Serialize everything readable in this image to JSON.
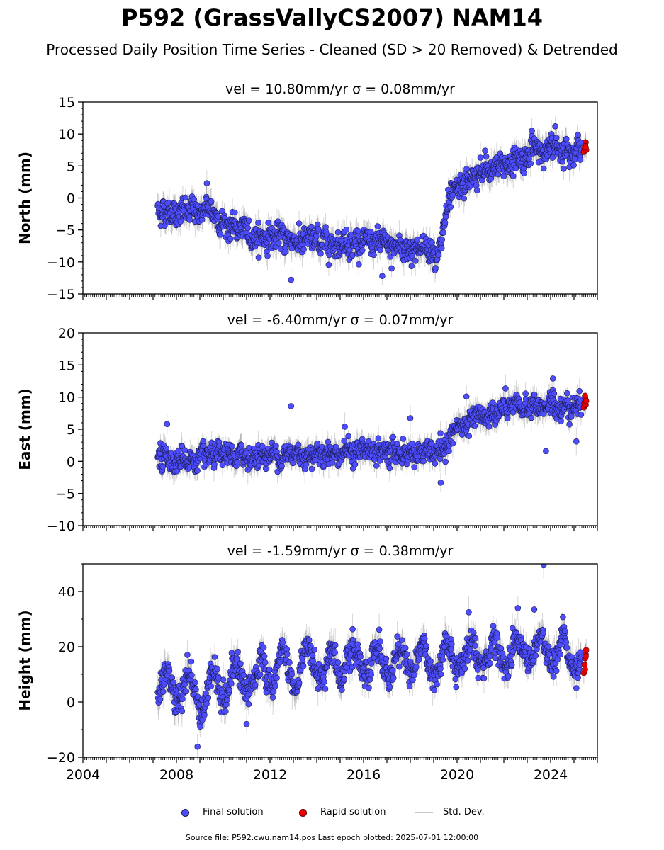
{
  "title": "P592 (GrassVallyCS2007) NAM14",
  "subtitle": "Processed Daily Position Time Series - Cleaned (SD > 20 Removed) & Detrended",
  "legend": {
    "final": "Final solution",
    "rapid": "Rapid solution",
    "std": "Std. Dev."
  },
  "footer": "Source file: P592.cwu.nam14.pos  Last epoch plotted: 2025-07-01 12:00:00",
  "colors": {
    "final": "#4d4dff",
    "rapid": "#ee0000",
    "std": "#c8c8c8",
    "edge": "#1a1a4d"
  },
  "chart_data": [
    {
      "type": "scatter",
      "panel": "north",
      "title_vel": "vel = 10.80mm/yr",
      "title_sigma": "σ = 0.08mm/yr",
      "ylabel": "North (mm)",
      "xlim": [
        2004,
        2026
      ],
      "ylim": [
        -15,
        15
      ],
      "yticks": [
        -15,
        -10,
        -5,
        0,
        5,
        10,
        15
      ],
      "xticks": [
        2004,
        2008,
        2012,
        2016,
        2020,
        2024
      ],
      "trend": [
        [
          2007.2,
          -2.0
        ],
        [
          2008.5,
          -2.3
        ],
        [
          2009.3,
          -1.8
        ],
        [
          2010.2,
          -4.2
        ],
        [
          2011.2,
          -5.8
        ],
        [
          2012.5,
          -6.3
        ],
        [
          2014.0,
          -6.8
        ],
        [
          2015.5,
          -6.7
        ],
        [
          2016.5,
          -7.2
        ],
        [
          2018.0,
          -7.7
        ],
        [
          2019.2,
          -8.0
        ],
        [
          2019.35,
          -7.5
        ],
        [
          2019.55,
          -1.8
        ],
        [
          2020.0,
          0.8
        ],
        [
          2020.5,
          2.6
        ],
        [
          2021.5,
          4.6
        ],
        [
          2022.5,
          6.0
        ],
        [
          2023.5,
          7.4
        ],
        [
          2024.5,
          8.0
        ],
        [
          2025.3,
          8.0
        ]
      ],
      "scatter": 1.2,
      "std_dev": 1.5,
      "outliers": [
        [
          2008.3,
          -2.0
        ],
        [
          2009.3,
          2.3
        ],
        [
          2012.9,
          -12.8
        ],
        [
          2016.8,
          -12.2
        ],
        [
          2017.2,
          -11.0
        ],
        [
          2021.2,
          7.4
        ],
        [
          2023.2,
          10.5
        ],
        [
          2024.2,
          11.2
        ]
      ],
      "rapid": [
        [
          2025.42,
          7.2
        ],
        [
          2025.45,
          7.8
        ],
        [
          2025.48,
          8.3
        ],
        [
          2025.5,
          8.7
        ],
        [
          2025.52,
          7.5
        ],
        [
          2025.47,
          8.1
        ],
        [
          2025.5,
          7.9
        ]
      ]
    },
    {
      "type": "scatter",
      "panel": "east",
      "title_vel": "vel = -6.40mm/yr",
      "title_sigma": "σ = 0.07mm/yr",
      "ylabel": "East (mm)",
      "xlim": [
        2004,
        2026
      ],
      "ylim": [
        -10,
        20
      ],
      "yticks": [
        -10,
        -5,
        0,
        5,
        10,
        15,
        20
      ],
      "xticks": [
        2004,
        2008,
        2012,
        2016,
        2020,
        2024
      ],
      "trend": [
        [
          2007.2,
          0.5
        ],
        [
          2009.0,
          0.2
        ],
        [
          2010.5,
          0.7
        ],
        [
          2012.0,
          1.0
        ],
        [
          2014.0,
          1.4
        ],
        [
          2016.0,
          1.6
        ],
        [
          2018.0,
          1.3
        ],
        [
          2019.3,
          1.2
        ],
        [
          2019.45,
          1.0
        ],
        [
          2019.7,
          4.4
        ],
        [
          2020.2,
          5.4
        ],
        [
          2021.0,
          6.6
        ],
        [
          2021.7,
          7.8
        ],
        [
          2022.5,
          8.2
        ],
        [
          2023.5,
          8.6
        ],
        [
          2024.5,
          8.8
        ],
        [
          2025.3,
          8.8
        ]
      ],
      "scatter": 1.1,
      "std_dev": 1.4,
      "outliers": [
        [
          2007.6,
          5.8
        ],
        [
          2012.9,
          8.6
        ],
        [
          2015.2,
          5.4
        ],
        [
          2018.0,
          6.7
        ],
        [
          2019.3,
          -3.3
        ],
        [
          2020.4,
          10.1
        ],
        [
          2023.8,
          1.6
        ],
        [
          2024.1,
          12.9
        ],
        [
          2025.1,
          3.1
        ]
      ],
      "rapid": [
        [
          2025.42,
          8.4
        ],
        [
          2025.45,
          9.1
        ],
        [
          2025.48,
          9.8
        ],
        [
          2025.5,
          8.8
        ],
        [
          2025.52,
          9.4
        ],
        [
          2025.47,
          10.2
        ]
      ]
    },
    {
      "type": "scatter",
      "panel": "height",
      "title_vel": "vel = -1.59mm/yr",
      "title_sigma": "σ = 0.38mm/yr",
      "ylabel": "Height (mm)",
      "xlim": [
        2004,
        2026
      ],
      "ylim": [
        -20,
        50
      ],
      "yticks": [
        -20,
        0,
        20,
        40
      ],
      "xticks": [
        2004,
        2008,
        2012,
        2016,
        2020,
        2024
      ],
      "xtick_labels": [
        "2004",
        "2008",
        "2012",
        "2016",
        "2020",
        "2024"
      ],
      "trend": [
        [
          2007.2,
          5
        ],
        [
          2008.0,
          5
        ],
        [
          2009.0,
          3
        ],
        [
          2010.0,
          8
        ],
        [
          2011.0,
          10
        ],
        [
          2012.0,
          10
        ],
        [
          2013.0,
          12
        ],
        [
          2014.0,
          13
        ],
        [
          2015.0,
          14
        ],
        [
          2016.0,
          14
        ],
        [
          2017.0,
          14
        ],
        [
          2018.0,
          15
        ],
        [
          2019.0,
          15
        ],
        [
          2020.0,
          16
        ],
        [
          2021.0,
          18
        ],
        [
          2022.0,
          18
        ],
        [
          2023.0,
          19
        ],
        [
          2024.0,
          18
        ],
        [
          2025.3,
          18
        ]
      ],
      "seasonal_amp": 5.5,
      "scatter": 3.2,
      "std_dev": 4.0,
      "outliers": [
        [
          2008.9,
          -16.2
        ],
        [
          2011.0,
          -8.0
        ],
        [
          2020.5,
          32.5
        ],
        [
          2022.6,
          34.0
        ],
        [
          2023.3,
          33.5
        ],
        [
          2023.7,
          49.5
        ],
        [
          2025.1,
          5.0
        ]
      ],
      "rapid": [
        [
          2025.42,
          10.5
        ],
        [
          2025.45,
          13.5
        ],
        [
          2025.48,
          15.8
        ],
        [
          2025.5,
          17.2
        ],
        [
          2025.52,
          18.8
        ],
        [
          2025.47,
          11.8
        ],
        [
          2025.5,
          16.5
        ]
      ]
    }
  ]
}
